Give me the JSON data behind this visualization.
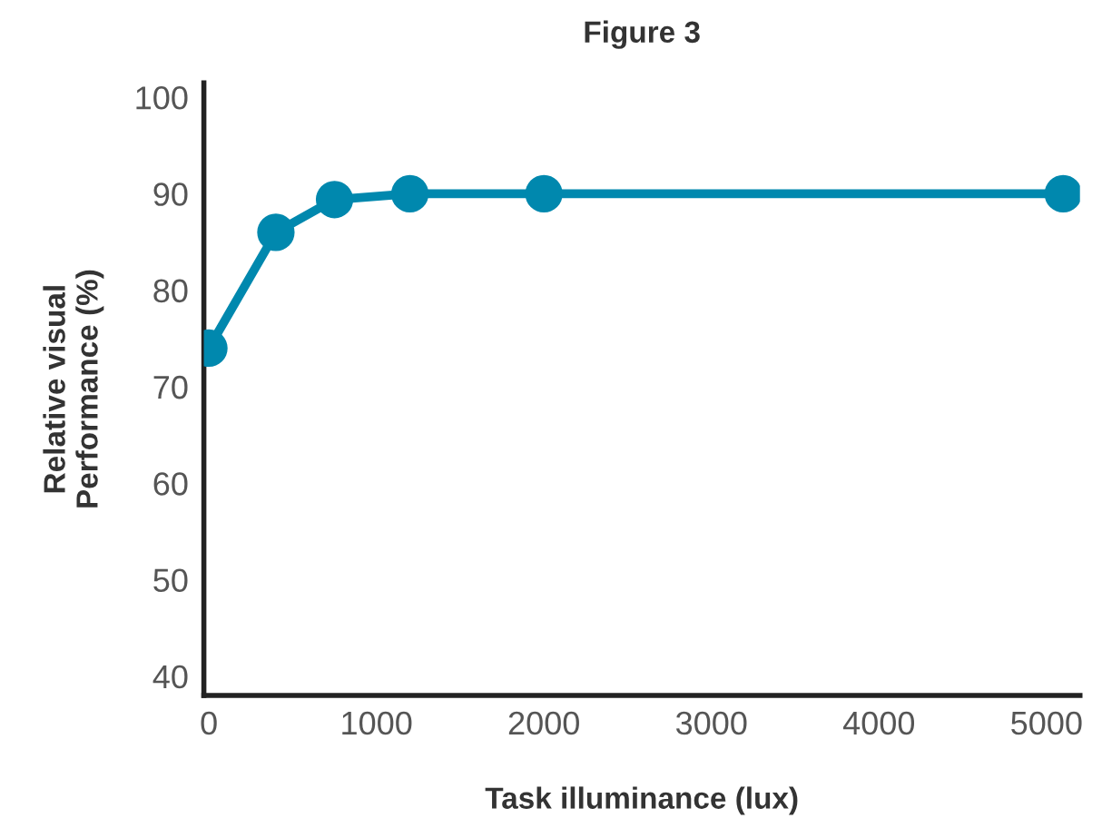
{
  "chart_data": {
    "type": "line",
    "title": "Figure 3",
    "xlabel": "Task illuminance (lux)",
    "ylabel": "Relative visual\nPerformance (%)",
    "x": [
      0,
      400,
      750,
      1200,
      2000,
      5100
    ],
    "series": [
      {
        "color": "#0088ae",
        "values": [
          74,
          86,
          89.4,
          90,
          90,
          90
        ]
      }
    ],
    "xlim": [
      -30,
      5200
    ],
    "xticks": [
      0,
      1000,
      2000,
      3000,
      4000,
      5000
    ],
    "ylim": [
      38,
      101.5
    ],
    "yticks": [
      40,
      50,
      60,
      70,
      80,
      90,
      100
    ],
    "marker": "circle",
    "line_style": "solid",
    "grid": false
  }
}
